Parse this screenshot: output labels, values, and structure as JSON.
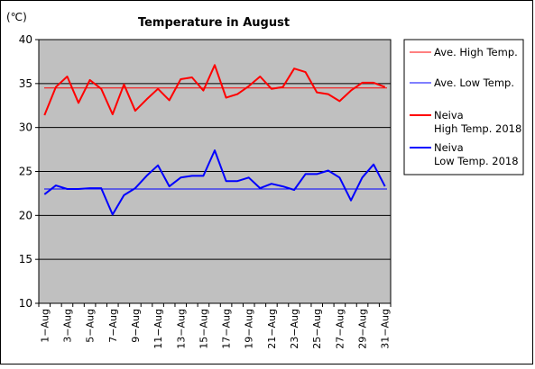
{
  "chart_data": {
    "type": "line",
    "title": "Temperature in August",
    "ylabel": "(℃)",
    "xlabel": "",
    "ylim": [
      10,
      40
    ],
    "yticks": [
      10,
      15,
      20,
      25,
      30,
      35,
      40
    ],
    "grid": true,
    "legend_position": "right",
    "x_labels": [
      "1−Aug",
      "3−Aug",
      "5−Aug",
      "7−Aug",
      "9−Aug",
      "11−Aug",
      "13−Aug",
      "15−Aug",
      "17−Aug",
      "19−Aug",
      "21−Aug",
      "23−Aug",
      "25−Aug",
      "27−Aug",
      "29−Aug",
      "31−Aug"
    ],
    "days": [
      1,
      2,
      3,
      4,
      5,
      6,
      7,
      8,
      9,
      10,
      11,
      12,
      13,
      14,
      15,
      16,
      17,
      18,
      19,
      20,
      21,
      22,
      23,
      24,
      25,
      26,
      27,
      28,
      29,
      30,
      31
    ],
    "series": [
      {
        "name": "Ave. High Temp.",
        "color": "#ff0000",
        "width": 1,
        "constant": 34.5
      },
      {
        "name": "Ave. Low Temp.",
        "color": "#0000ff",
        "width": 1,
        "constant": 23.0
      },
      {
        "name": "Neiva\nHigh Temp. 2018",
        "color": "#ff0000",
        "width": 2,
        "values": [
          31.4,
          34.6,
          35.8,
          32.8,
          35.4,
          34.4,
          31.5,
          34.9,
          31.9,
          33.2,
          34.4,
          33.1,
          35.5,
          35.7,
          34.2,
          37.1,
          33.4,
          33.8,
          34.7,
          35.8,
          34.4,
          34.6,
          36.7,
          36.3,
          34.0,
          33.8,
          33.0,
          34.2,
          35.1,
          35.1,
          34.6
        ]
      },
      {
        "name": "Neiva\nLow Temp. 2018",
        "color": "#0000ff",
        "width": 2,
        "values": [
          22.4,
          23.4,
          23.0,
          23.0,
          23.1,
          23.1,
          20.1,
          22.3,
          23.1,
          24.5,
          25.7,
          23.3,
          24.3,
          24.5,
          24.5,
          27.4,
          23.9,
          23.9,
          24.3,
          23.1,
          23.6,
          23.3,
          22.9,
          24.7,
          24.7,
          25.1,
          24.3,
          21.7,
          24.3,
          25.8,
          23.3
        ]
      }
    ]
  }
}
